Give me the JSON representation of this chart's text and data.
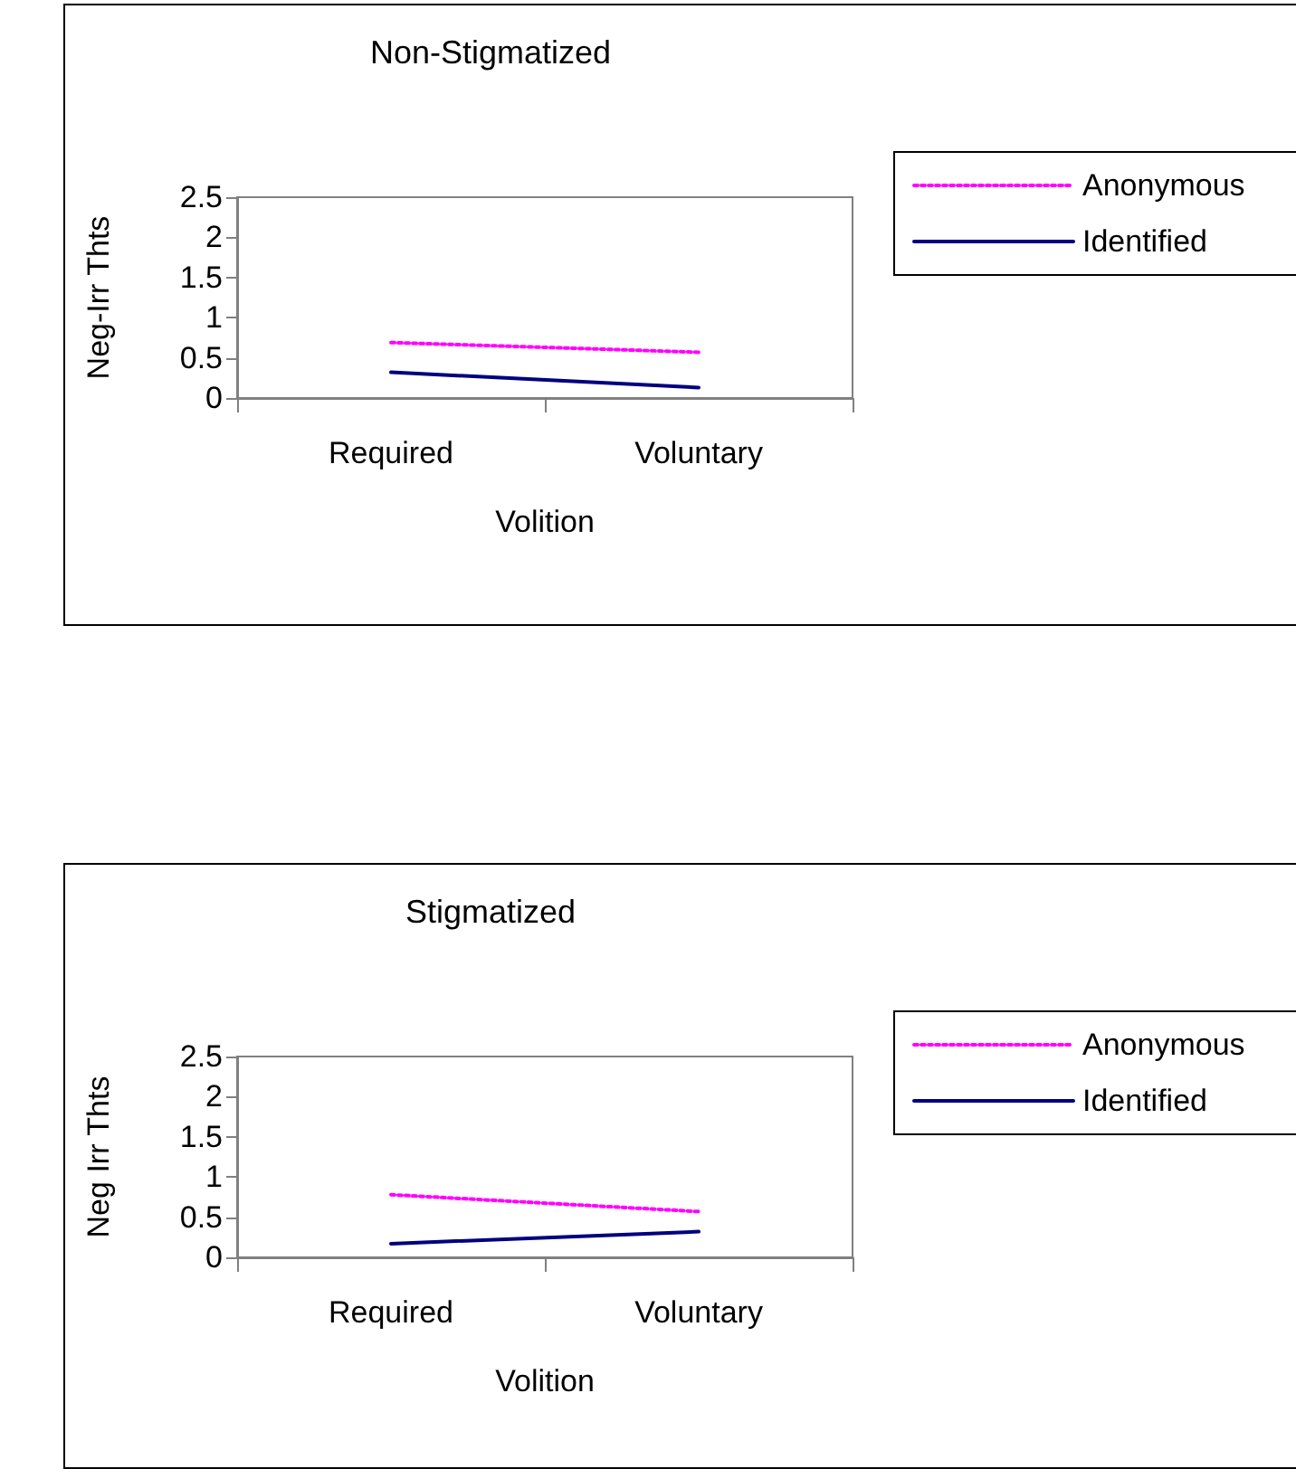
{
  "chart_data": [
    {
      "type": "line",
      "title": "Non-Stigmatized",
      "xlabel": "Volition",
      "ylabel": "Neg-Irr Thts",
      "categories": [
        "Required",
        "Voluntary"
      ],
      "ylim": [
        0,
        2.5
      ],
      "yticks": [
        0,
        0.5,
        1,
        1.5,
        2,
        2.5
      ],
      "grid": false,
      "legend": "right",
      "marker": "none",
      "series": [
        {
          "name": "Anonymous",
          "color": "#ff00ff",
          "line_style": "dotted",
          "values": [
            0.69,
            0.57
          ]
        },
        {
          "name": "Identified",
          "color": "#000080",
          "line_style": "solid",
          "values": [
            0.32,
            0.13
          ]
        }
      ]
    },
    {
      "type": "line",
      "title": "Stigmatized",
      "xlabel": "Volition",
      "ylabel": "Neg Irr Thts",
      "categories": [
        "Required",
        "Voluntary"
      ],
      "ylim": [
        0,
        2.5
      ],
      "yticks": [
        0,
        0.5,
        1,
        1.5,
        2,
        2.5
      ],
      "grid": false,
      "legend": "right",
      "marker": "none",
      "series": [
        {
          "name": "Anonymous",
          "color": "#ff00ff",
          "line_style": "dotted",
          "values": [
            0.78,
            0.57
          ]
        },
        {
          "name": "Identified",
          "color": "#000080",
          "line_style": "solid",
          "values": [
            0.17,
            0.32
          ]
        }
      ]
    }
  ]
}
